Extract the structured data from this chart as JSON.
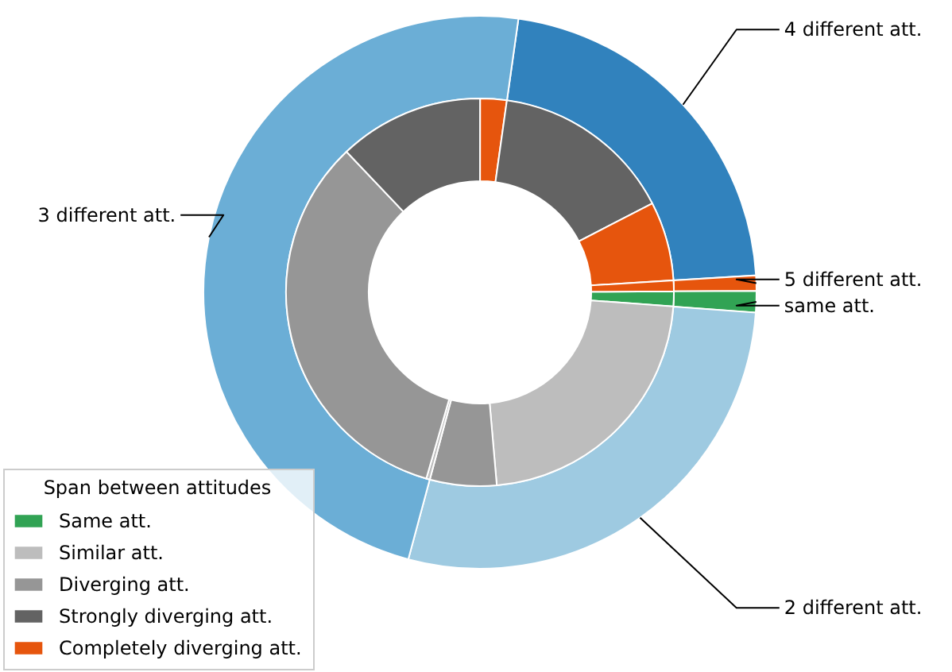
{
  "chart_data": [
    {
      "type": "donut",
      "categories": [
        "4 different att.",
        "5 different att.",
        "same att.",
        "2 different att.",
        "3 different att."
      ],
      "values": [
        21.8,
        0.9,
        1.25,
        28.0,
        48.05
      ],
      "colors": [
        "#3182bd",
        "#e6550d",
        "#31a354",
        "#9ecae1",
        "#6baed6"
      ]
    },
    {
      "type": "donut",
      "legend_title": "Span between attitudes",
      "legend": "bottom left",
      "categories": [
        "Same att.",
        "Similar att.",
        "Diverging att.",
        null,
        null,
        "Strongly diverging att.",
        "Completely diverging att.",
        null,
        null,
        null
      ],
      "values": [
        1.25,
        22.45,
        5.55,
        0.3,
        33.45,
        12.1,
        2.2,
        15.2,
        6.6,
        0.9
      ],
      "colors": [
        "#31a354",
        "#bdbdbd",
        "#969696",
        "#bdbdbd",
        "#969696",
        "#636363",
        "#e6550d",
        "#636363",
        "#e6550d",
        "#e6550d"
      ]
    }
  ]
}
